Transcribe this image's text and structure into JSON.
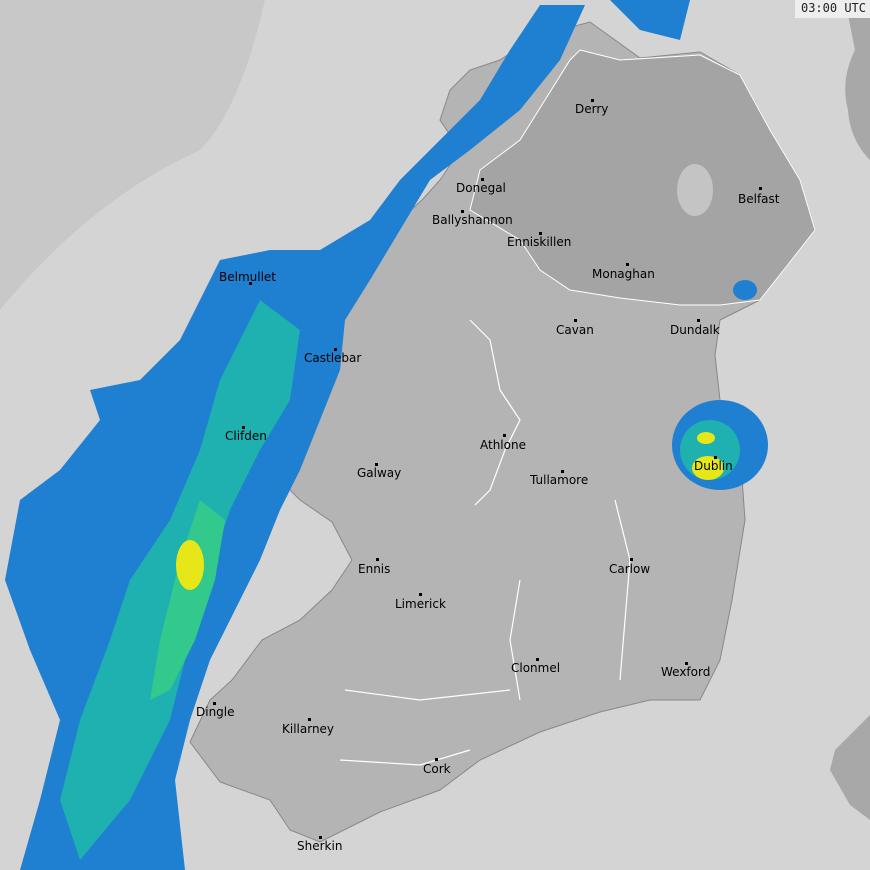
{
  "timestamp": "03:00 UTC",
  "colors": {
    "sea": "#d4d4d4",
    "out_of_range": "#c8c8c8",
    "republic": "#b4b4b4",
    "northern_ireland": "#a4a4a4",
    "rain_light": "#1f7fd0",
    "rain_moderate": "#1fb0b0",
    "rain_medium": "#33c88c",
    "rain_heavy": "#e6e619"
  },
  "cities": [
    "Derry",
    "Donegal",
    "Belfast",
    "Ballyshannon",
    "Enniskillen",
    "Monaghan",
    "Belmullet",
    "Cavan",
    "Dundalk",
    "Castlebar",
    "Clifden",
    "Athlone",
    "Dublin",
    "Galway",
    "Tullamore",
    "Ennis",
    "Carlow",
    "Limerick",
    "Clonmel",
    "Wexford",
    "Dingle",
    "Killarney",
    "Cork",
    "Sherkin"
  ]
}
